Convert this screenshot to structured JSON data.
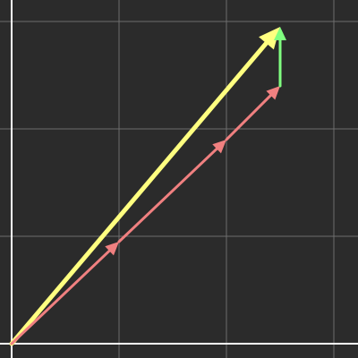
{
  "colors": {
    "background": "#2b2b2b",
    "grid": "#6e6e6e",
    "axis": "#ffffff",
    "vector_component": "#f08080",
    "vector_resultant": "#ffff80",
    "vector_correction": "#80ff80"
  },
  "grid": {
    "x_range": [
      0,
      3.2
    ],
    "y_range": [
      0,
      3.2
    ],
    "step": 1,
    "visible": true
  },
  "vectors": [
    {
      "id": "step-1",
      "role": "component",
      "from": [
        0,
        0
      ],
      "to": [
        1,
        0.95
      ],
      "color_key": "vector_component"
    },
    {
      "id": "step-2",
      "role": "component",
      "from": [
        1,
        0.95
      ],
      "to": [
        2,
        1.9
      ],
      "color_key": "vector_component"
    },
    {
      "id": "step-3",
      "role": "component",
      "from": [
        2,
        1.9
      ],
      "to": [
        2.5,
        2.4
      ],
      "color_key": "vector_component"
    },
    {
      "id": "correction",
      "role": "correction",
      "from": [
        2.5,
        2.4
      ],
      "to": [
        2.5,
        2.95
      ],
      "color_key": "vector_correction"
    },
    {
      "id": "resultant",
      "role": "resultant",
      "from": [
        0,
        0
      ],
      "to": [
        2.5,
        2.95
      ],
      "color_key": "vector_resultant"
    }
  ]
}
